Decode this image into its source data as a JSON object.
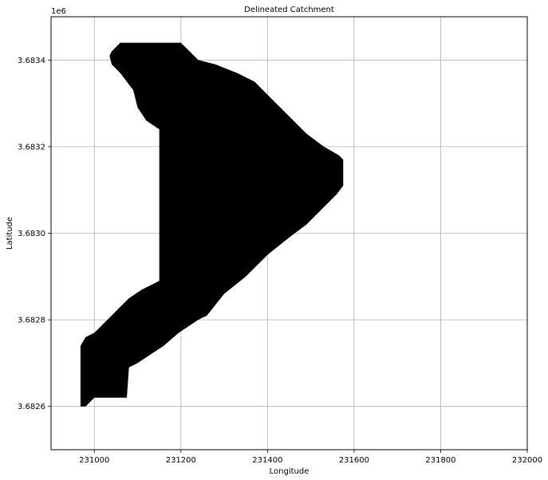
{
  "chart_data": {
    "type": "raster-mask",
    "title": "Delineated Catchment",
    "xlabel": "Longitude",
    "ylabel": "Latitude",
    "y_offset_label": "1e6",
    "xlim": [
      230900,
      232000
    ],
    "ylim": [
      3682500,
      3683500
    ],
    "x_ticks": [
      231000,
      231200,
      231400,
      231600,
      231800,
      232000
    ],
    "x_tick_labels": [
      "231000",
      "231200",
      "231400",
      "231600",
      "231800",
      "232000"
    ],
    "y_ticks": [
      3682600,
      3682800,
      3683000,
      3683200,
      3683400
    ],
    "y_tick_labels": [
      "3.6826",
      "3.6828",
      "3.6830",
      "3.6832",
      "3.6834"
    ],
    "grid": true,
    "fill_color": "#000000",
    "background_color": "#ffffff",
    "catchment_outline": [
      [
        231060,
        3683440
      ],
      [
        231200,
        3683440
      ],
      [
        231220,
        3683420
      ],
      [
        231240,
        3683400
      ],
      [
        231280,
        3683390
      ],
      [
        231330,
        3683370
      ],
      [
        231370,
        3683350
      ],
      [
        231410,
        3683310
      ],
      [
        231450,
        3683270
      ],
      [
        231490,
        3683230
      ],
      [
        231530,
        3683200
      ],
      [
        231565,
        3683180
      ],
      [
        231575,
        3683170
      ],
      [
        231575,
        3683110
      ],
      [
        231560,
        3683090
      ],
      [
        231530,
        3683060
      ],
      [
        231490,
        3683020
      ],
      [
        231450,
        3682990
      ],
      [
        231400,
        3682950
      ],
      [
        231350,
        3682900
      ],
      [
        231300,
        3682860
      ],
      [
        231260,
        3682810
      ],
      [
        231240,
        3682800
      ],
      [
        231210,
        3682780
      ],
      [
        231195,
        3682770
      ],
      [
        231160,
        3682740
      ],
      [
        231130,
        3682720
      ],
      [
        231100,
        3682700
      ],
      [
        231080,
        3682690
      ],
      [
        231075,
        3682620
      ],
      [
        231000,
        3682620
      ],
      [
        230980,
        3682600
      ],
      [
        230968,
        3682600
      ],
      [
        230968,
        3682740
      ],
      [
        230980,
        3682760
      ],
      [
        231000,
        3682770
      ],
      [
        231020,
        3682790
      ],
      [
        231040,
        3682810
      ],
      [
        231060,
        3682830
      ],
      [
        231080,
        3682850
      ],
      [
        231110,
        3682870
      ],
      [
        231150,
        3682890
      ],
      [
        231150,
        3683240
      ],
      [
        231120,
        3683260
      ],
      [
        231100,
        3683290
      ],
      [
        231090,
        3683330
      ],
      [
        231060,
        3683370
      ],
      [
        231040,
        3683390
      ],
      [
        231035,
        3683410
      ],
      [
        231040,
        3683420
      ],
      [
        231060,
        3683440
      ]
    ]
  }
}
